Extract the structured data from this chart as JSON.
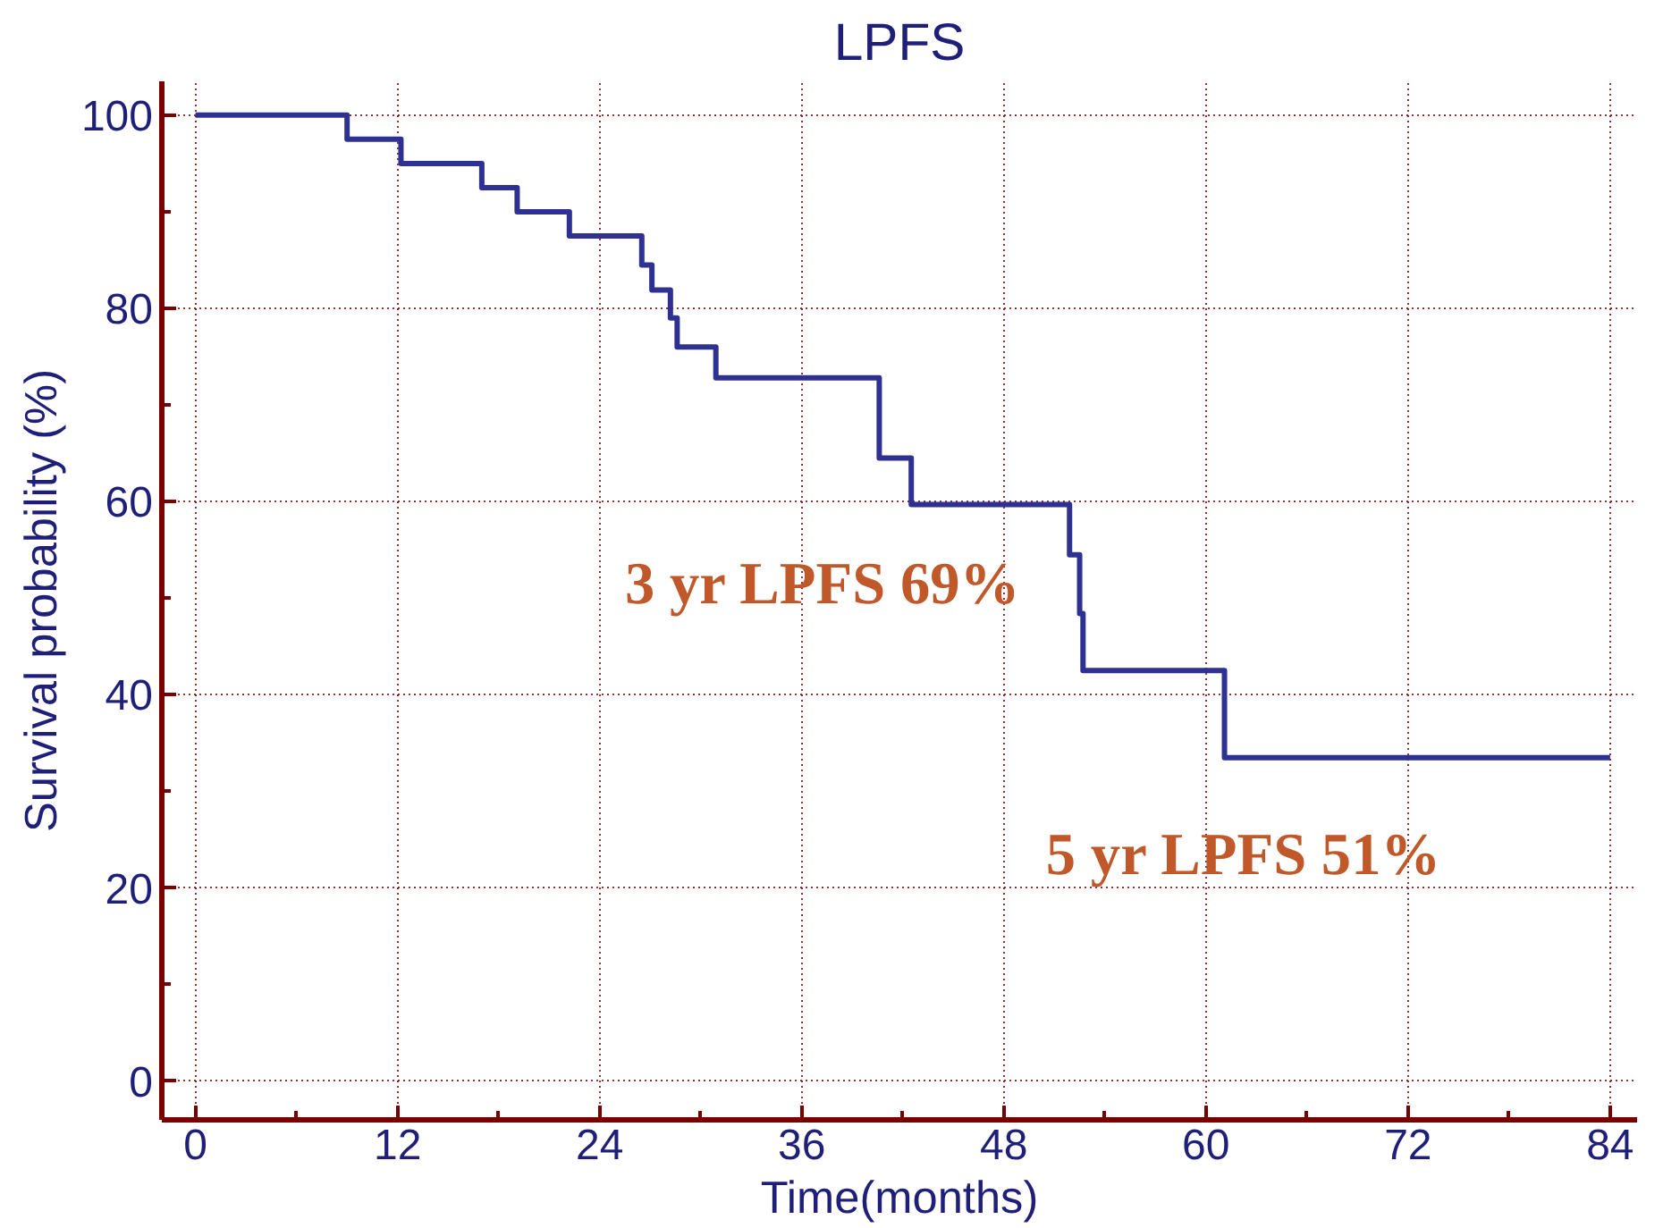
{
  "chart_data": {
    "type": "step",
    "title": "LPFS",
    "xlabel": "Time(months)",
    "ylabel": "Survival probability (%)",
    "x": [
      0,
      9.0,
      12.2,
      17.0,
      19.1,
      22.2,
      26.5,
      27.1,
      28.2,
      28.6,
      30.9,
      40.6,
      42.5,
      51.9,
      52.5,
      52.7,
      61.1,
      84
    ],
    "series": [
      {
        "color": "#2e3192",
        "values": [
          100,
          97.5,
          95,
          92.5,
          90,
          87.5,
          84.5,
          81.9,
          79,
          76,
          72.8,
          64.5,
          59.7,
          54.5,
          48.4,
          42.5,
          33.5,
          33.5
        ]
      }
    ],
    "xlim": [
      -2,
      85.6
    ],
    "ylim": [
      -4,
      103.5
    ],
    "xticks": [
      0,
      12,
      24,
      36,
      48,
      60,
      72,
      84
    ],
    "yticks": [
      0,
      20,
      40,
      60,
      80,
      100
    ],
    "grid": true,
    "marker": "none",
    "line_style": "solid",
    "annotations": [
      "3 yr LPFS 69%",
      "5 yr LPFS 51%"
    ]
  }
}
